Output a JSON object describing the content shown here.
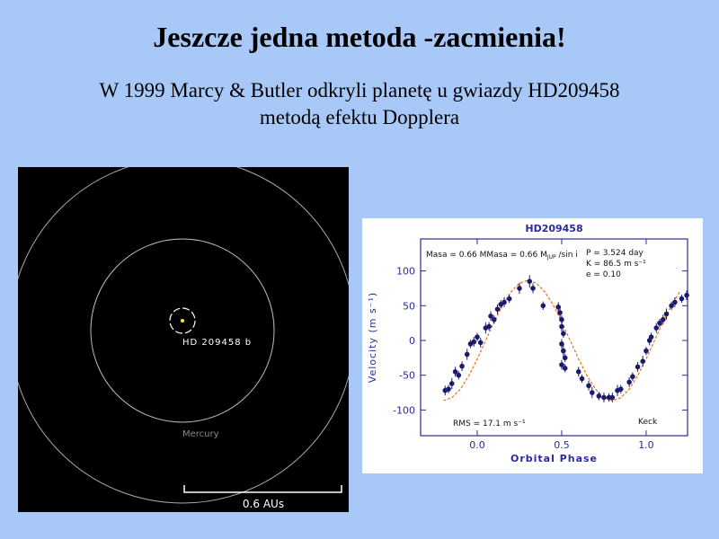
{
  "slide": {
    "title": "Jeszcze jedna metoda -zacmienia!",
    "subtitle_lines": [
      "W 1999 Marcy & Butler odkryli planetę u gwiazdy HD209458",
      "metodą efektu Dopplera"
    ]
  },
  "diagram": {
    "planet_label": "HD 209458 b",
    "orbit_label": "Mercury",
    "scale_label": "0.6 AUs"
  },
  "chart_data": {
    "type": "scatter",
    "title": "HD209458",
    "x_label": "Orbital Phase",
    "y_label": "Velocity  (m s⁻¹)",
    "annotations": {
      "mass": "Masa = 0.66 M",
      "mass_sub": "JUP",
      "mass_tail": " /sin i",
      "period": "P = 3.524 day",
      "amplitude": "K = 86.5 m s⁻¹",
      "eccentricity": "e = 0.10",
      "rms": "RMS = 17.1 m s⁻¹",
      "telescope": "Keck"
    },
    "xlim": [
      -0.335,
      1.245
    ],
    "ylim": [
      -137,
      146
    ],
    "xticks": [
      {
        "value": 0,
        "label": "0.0"
      },
      {
        "value": 0.5,
        "label": "0.5"
      },
      {
        "value": 1,
        "label": "1.0"
      }
    ],
    "yticks": [
      100,
      50,
      0,
      -50,
      -100
    ],
    "series": [
      {
        "color": "#1c1a6a",
        "x": [
          -0.19,
          -0.17,
          -0.15,
          -0.13,
          -0.11,
          -0.09,
          -0.06,
          -0.04,
          -0.02,
          0.0,
          0.02,
          0.05,
          0.07,
          0.08,
          0.1,
          0.12,
          0.14,
          0.16,
          0.19,
          0.25,
          0.31,
          0.33,
          0.39,
          0.48,
          0.49,
          0.5,
          0.5,
          0.51,
          0.5,
          0.51,
          0.52,
          0.5,
          0.52,
          0.6,
          0.62,
          0.66,
          0.68,
          0.72,
          0.75,
          0.78,
          0.8,
          0.83,
          0.85,
          0.9,
          0.92,
          0.95,
          0.98,
          1.0,
          1.02,
          1.03,
          1.06,
          1.08,
          1.1,
          1.12,
          1.15,
          1.17,
          1.21,
          1.24
        ],
        "values": [
          -72,
          -70,
          -62,
          -45,
          -50,
          -37,
          -20,
          -5,
          -2,
          5,
          -3,
          18,
          20,
          35,
          30,
          45,
          52,
          55,
          60,
          75,
          85,
          75,
          50,
          48,
          40,
          30,
          20,
          10,
          -5,
          -15,
          -25,
          -35,
          -40,
          -45,
          -55,
          -65,
          -75,
          -80,
          -82,
          -82,
          -82,
          -72,
          -70,
          -60,
          -52,
          -38,
          -30,
          -15,
          0,
          5,
          18,
          25,
          30,
          38,
          50,
          55,
          60,
          65
        ],
        "errors": [
          7,
          6,
          8,
          7,
          6,
          7,
          8,
          6,
          7,
          6,
          7,
          8,
          6,
          7,
          6,
          7,
          6,
          7,
          6,
          8,
          9,
          7,
          6,
          7,
          8,
          6,
          7,
          6,
          7,
          8,
          6,
          7,
          6,
          7,
          6,
          7,
          8,
          6,
          7,
          6,
          7,
          8,
          6,
          7,
          6,
          7,
          8,
          6,
          7,
          6,
          7,
          6,
          7,
          8,
          6,
          7,
          6,
          7
        ]
      },
      {
        "type": "line",
        "color": "#e8701a",
        "dashed": true,
        "x": [
          -0.2,
          -0.15,
          -0.1,
          -0.05,
          0.0,
          0.05,
          0.1,
          0.15,
          0.2,
          0.25,
          0.3,
          0.35,
          0.4,
          0.45,
          0.5,
          0.55,
          0.6,
          0.65,
          0.7,
          0.75,
          0.8,
          0.85,
          0.9,
          0.95,
          1.0,
          1.05,
          1.1,
          1.15,
          1.2
        ],
        "values": [
          -86.5,
          -82.3,
          -70,
          -50.8,
          -26.7,
          0,
          26.7,
          50.8,
          70,
          82.3,
          86.5,
          82.3,
          70,
          50.8,
          26.7,
          0,
          -26.7,
          -50.8,
          -70,
          -82.3,
          -86.5,
          -82.3,
          -70,
          -50.8,
          -26.7,
          0,
          26.7,
          50.8,
          70
        ]
      }
    ]
  }
}
